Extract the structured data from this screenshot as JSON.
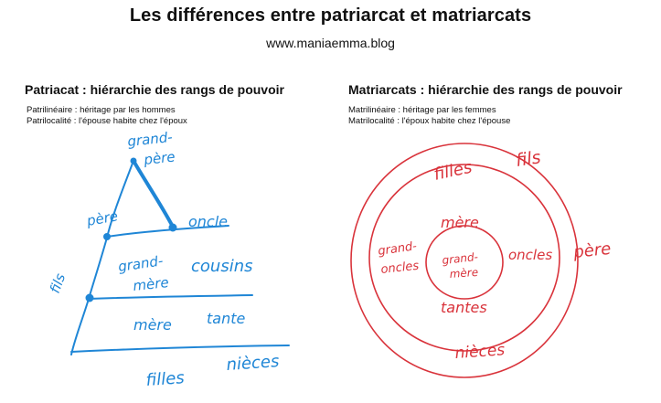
{
  "header": {
    "title": "Les différences entre patriarcat et matriarcats",
    "website": "www.maniaemma.blog"
  },
  "colors": {
    "patriarchy_ink": "#1f86d6",
    "matriarchy_ink": "#d9333b"
  },
  "patriarchy": {
    "heading": "Patriacat : hiérarchie des rangs de pouvoir",
    "line1": "Patrilinéaire : héritage par les hommes",
    "line2": "Patrilocalité : l'épouse habite chez l'époux",
    "labels": {
      "grandpere_1": "grand-",
      "grandpere_2": "père",
      "pere": "père",
      "oncle": "oncle",
      "grandmere_1": "grand-",
      "grandmere_2": "mère",
      "cousins": "cousins",
      "fils": "fils",
      "mere": "mère",
      "tante": "tante",
      "filles": "filles",
      "nieces": "nièces"
    }
  },
  "matriarchy": {
    "heading": "Matriarcats : hiérarchie des rangs de pouvoir",
    "line1": "Matrilinéaire : héritage par les femmes",
    "line2": "Matrilocalité : l'époux habite chez l'épouse",
    "labels": {
      "fils": "fils",
      "filles": "filles",
      "pere": "père",
      "mere": "mère",
      "grandsoncles_1": "grand-",
      "grandsoncles_2": "oncles",
      "grandmere_1": "grand-",
      "grandmere_2": "mère",
      "oncles": "oncles",
      "tantes": "tantes",
      "nieces": "nièces"
    }
  }
}
